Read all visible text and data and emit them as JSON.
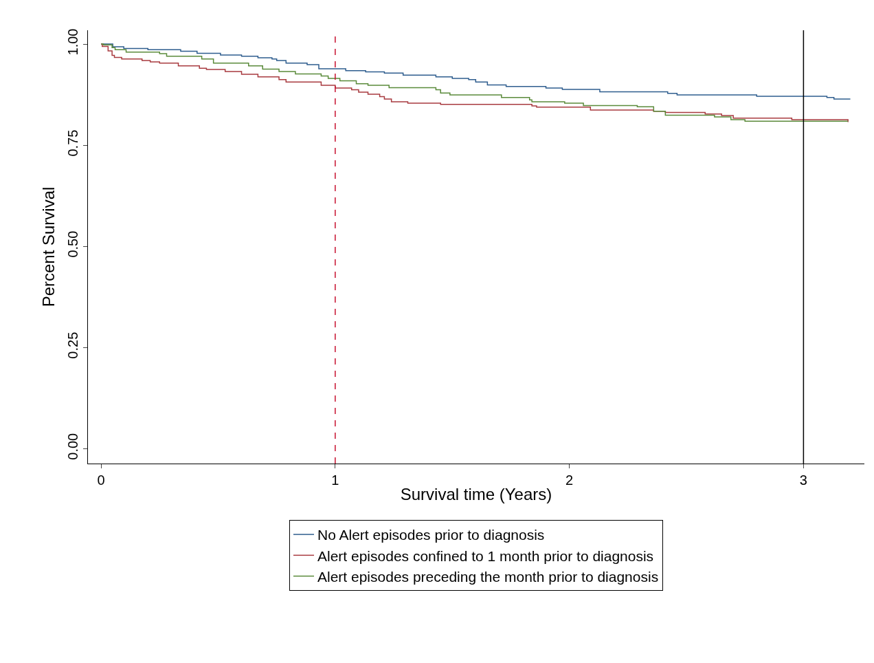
{
  "chart_data": {
    "type": "step",
    "xlabel": "Survival time (Years)",
    "ylabel": "Percent Survival",
    "xlim": [
      -0.056,
      3.26
    ],
    "ylim": [
      -0.037,
      1.034
    ],
    "xticks": [
      0,
      1,
      2,
      3
    ],
    "yticks": [
      {
        "value": 0,
        "label": "0.00"
      },
      {
        "value": 0.25,
        "label": "0.25"
      },
      {
        "value": 0.5,
        "label": "0.50"
      },
      {
        "value": 0.75,
        "label": "0.75"
      },
      {
        "value": 1,
        "label": "1.00"
      }
    ],
    "grid": false,
    "legend": "bottom",
    "marker": "none",
    "line_style": "solid",
    "ref_lines": [
      {
        "axis": "x",
        "value": 1,
        "color": "#c8102e",
        "line_style": "dashed"
      },
      {
        "axis": "x",
        "value": 3,
        "color": "#000000",
        "line_style": "solid"
      }
    ],
    "series": [
      {
        "name": "No Alert episodes prior to diagnosis",
        "color": "#2e5d8e",
        "x": [
          0,
          0.05,
          0.097,
          0.2,
          0.34,
          0.41,
          0.51,
          0.6,
          0.67,
          0.73,
          0.75,
          0.79,
          0.88,
          0.93,
          1.045,
          1.13,
          1.21,
          1.29,
          1.43,
          1.5,
          1.57,
          1.6,
          1.65,
          1.73,
          1.9,
          1.97,
          2.13,
          2.42,
          2.46,
          2.8,
          3.1,
          3.13,
          3.2
        ],
        "values": [
          1.0,
          0.993,
          0.989,
          0.986,
          0.982,
          0.977,
          0.973,
          0.97,
          0.966,
          0.963,
          0.959,
          0.953,
          0.949,
          0.939,
          0.934,
          0.931,
          0.928,
          0.923,
          0.919,
          0.915,
          0.912,
          0.906,
          0.899,
          0.895,
          0.891,
          0.888,
          0.882,
          0.878,
          0.874,
          0.871,
          0.868,
          0.864,
          0.864
        ]
      },
      {
        "name": "Alert episodes confined to 1 month prior to diagnosis",
        "color": "#a83a3f",
        "x": [
          0,
          0.005,
          0.03,
          0.047,
          0.057,
          0.088,
          0.175,
          0.21,
          0.25,
          0.33,
          0.42,
          0.45,
          0.53,
          0.6,
          0.67,
          0.76,
          0.79,
          0.94,
          1.0,
          1.07,
          1.1,
          1.14,
          1.19,
          1.21,
          1.24,
          1.31,
          1.45,
          1.84,
          1.86,
          2.09,
          2.36,
          2.41,
          2.58,
          2.65,
          2.7,
          2.95,
          3.19
        ],
        "values": [
          1.0,
          0.994,
          0.983,
          0.972,
          0.967,
          0.963,
          0.959,
          0.956,
          0.953,
          0.946,
          0.94,
          0.937,
          0.932,
          0.925,
          0.919,
          0.912,
          0.906,
          0.898,
          0.891,
          0.887,
          0.881,
          0.876,
          0.87,
          0.864,
          0.857,
          0.854,
          0.851,
          0.847,
          0.844,
          0.837,
          0.834,
          0.831,
          0.827,
          0.823,
          0.817,
          0.813,
          0.807
        ]
      },
      {
        "name": "Alert episodes preceding the month prior to diagnosis",
        "color": "#5a8a3a",
        "x": [
          0,
          0.01,
          0.047,
          0.06,
          0.107,
          0.25,
          0.28,
          0.43,
          0.48,
          0.63,
          0.69,
          0.76,
          0.83,
          0.94,
          0.97,
          1.02,
          1.09,
          1.14,
          1.23,
          1.43,
          1.45,
          1.49,
          1.71,
          1.83,
          1.84,
          1.98,
          2.06,
          2.29,
          2.36,
          2.41,
          2.62,
          2.69,
          2.75,
          3.19
        ],
        "values": [
          1.0,
          0.998,
          0.991,
          0.986,
          0.98,
          0.976,
          0.97,
          0.963,
          0.953,
          0.946,
          0.938,
          0.932,
          0.926,
          0.921,
          0.915,
          0.909,
          0.902,
          0.898,
          0.892,
          0.887,
          0.879,
          0.874,
          0.868,
          0.862,
          0.857,
          0.854,
          0.848,
          0.845,
          0.834,
          0.824,
          0.82,
          0.813,
          0.809,
          0.809
        ]
      }
    ]
  }
}
